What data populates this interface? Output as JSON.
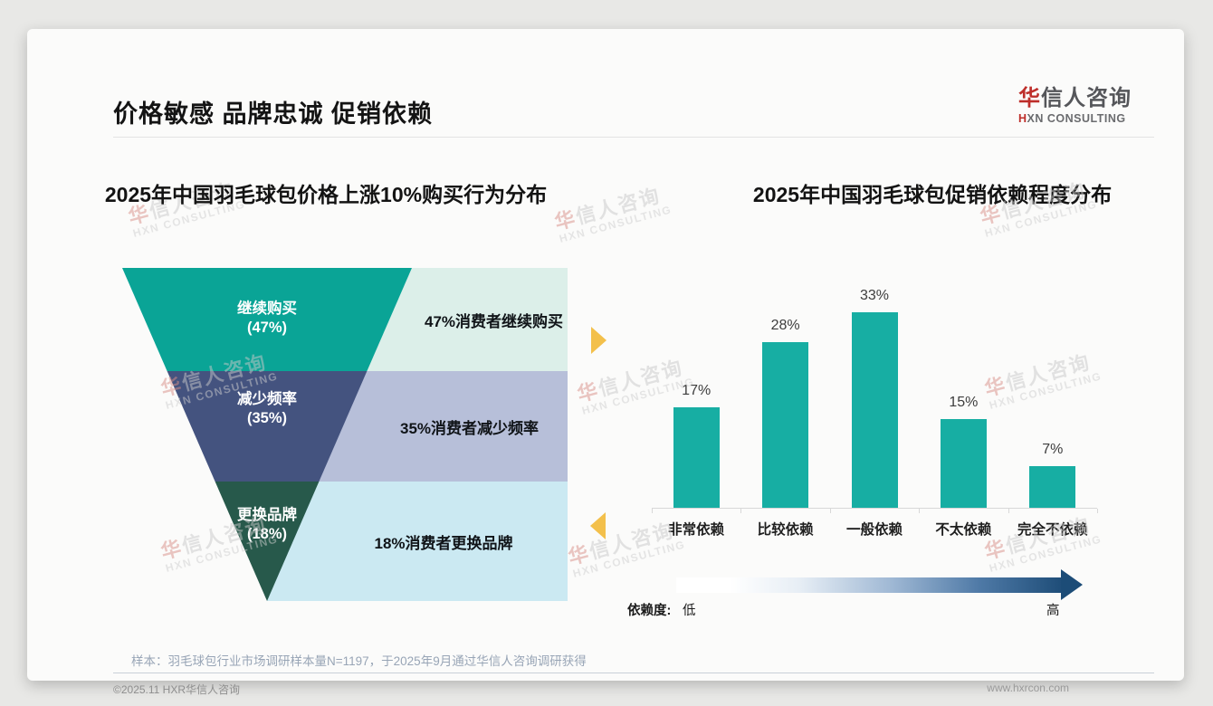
{
  "page": {
    "title": "价格敏感 品牌忠诚 促销依赖"
  },
  "logo": {
    "name_first": "华",
    "name_rest": "信人咨询",
    "sub_first": "H",
    "sub_rest": "XN CONSULTING"
  },
  "watermark": {
    "line1_first": "华",
    "line1_rest": "信人咨询",
    "line2": "HXN CONSULTING"
  },
  "chart_data": [
    {
      "type": "funnel",
      "title": "2025年中国羽毛球包价格上涨10%购买行为分布",
      "segments": [
        {
          "label": "继续购买",
          "pct_label": "(47%)",
          "value_pct": 47,
          "annotation": "47%消费者继续购买",
          "color": "#0AA496",
          "panel_color": "#DCEFE9"
        },
        {
          "label": "减少频率",
          "pct_label": "(35%)",
          "value_pct": 35,
          "annotation": "35%消费者减少频率",
          "color": "#44537F",
          "panel_color": "#B7BFD9"
        },
        {
          "label": "更换品牌",
          "pct_label": "(18%)",
          "value_pct": 18,
          "annotation": "18%消费者更换品牌",
          "color": "#27594B",
          "panel_color": "#CBE9F2"
        }
      ]
    },
    {
      "type": "bar",
      "title": "2025年中国羽毛球包促销依赖程度分布",
      "categories": [
        "非常依赖",
        "比较依赖",
        "一般依赖",
        "不太依赖",
        "完全不依赖"
      ],
      "values": [
        17,
        28,
        33,
        15,
        7
      ],
      "unit": "%",
      "bar_color": "#17AEA3",
      "ylim": [
        0,
        35
      ],
      "grid": false,
      "legend": "none",
      "axis_note": {
        "label": "依赖度:",
        "low": "低",
        "high": "高"
      }
    }
  ],
  "footnote": "样本：羽毛球包行业市场调研样本量N=1197，于2025年9月通过华信人咨询调研获得",
  "footer": {
    "copyright": "©2025.11 HXR华信人咨询",
    "website": "www.hxrcon.com"
  },
  "accents": {
    "brand_red": "#BE2E2A",
    "gold_arrow": "#F3C04B",
    "gradient_dark": "#1F4E79"
  }
}
